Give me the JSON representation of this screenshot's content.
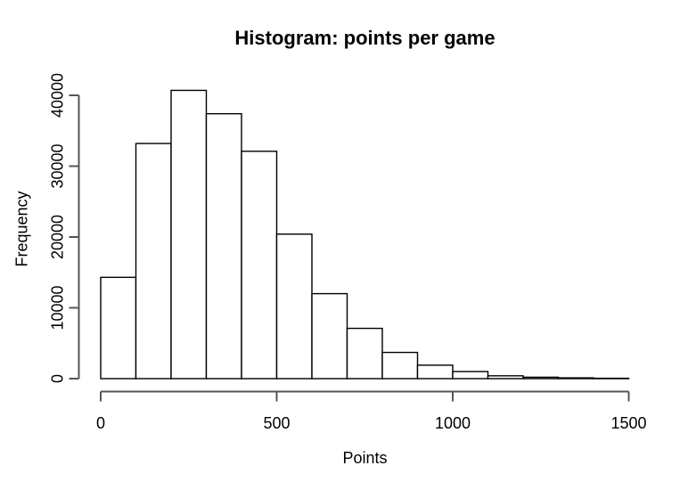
{
  "chart_data": {
    "type": "histogram",
    "title": "Histogram: points per game",
    "xlabel": "Points",
    "ylabel": "Frequency",
    "bin_start": 0,
    "bin_width": 100,
    "counts": [
      14300,
      33200,
      40700,
      37400,
      32100,
      20400,
      12000,
      7100,
      3700,
      1900,
      1000,
      400,
      200,
      110,
      50
    ],
    "x_ticks": [
      0,
      500,
      1000,
      1500
    ],
    "x_tick_labels": [
      "0",
      "500",
      "1000",
      "1500"
    ],
    "y_ticks": [
      0,
      10000,
      20000,
      30000,
      40000
    ],
    "y_tick_labels": [
      "0",
      "10000",
      "20000",
      "30000",
      "40000"
    ],
    "xlim": [
      0,
      1500
    ],
    "ylim": [
      0,
      40700
    ],
    "grid": false,
    "legend": null,
    "bar_fill": "#ffffff",
    "bar_border": "#000000",
    "axis_color": "#555555",
    "text_color": "#000000",
    "background": "#ffffff"
  }
}
